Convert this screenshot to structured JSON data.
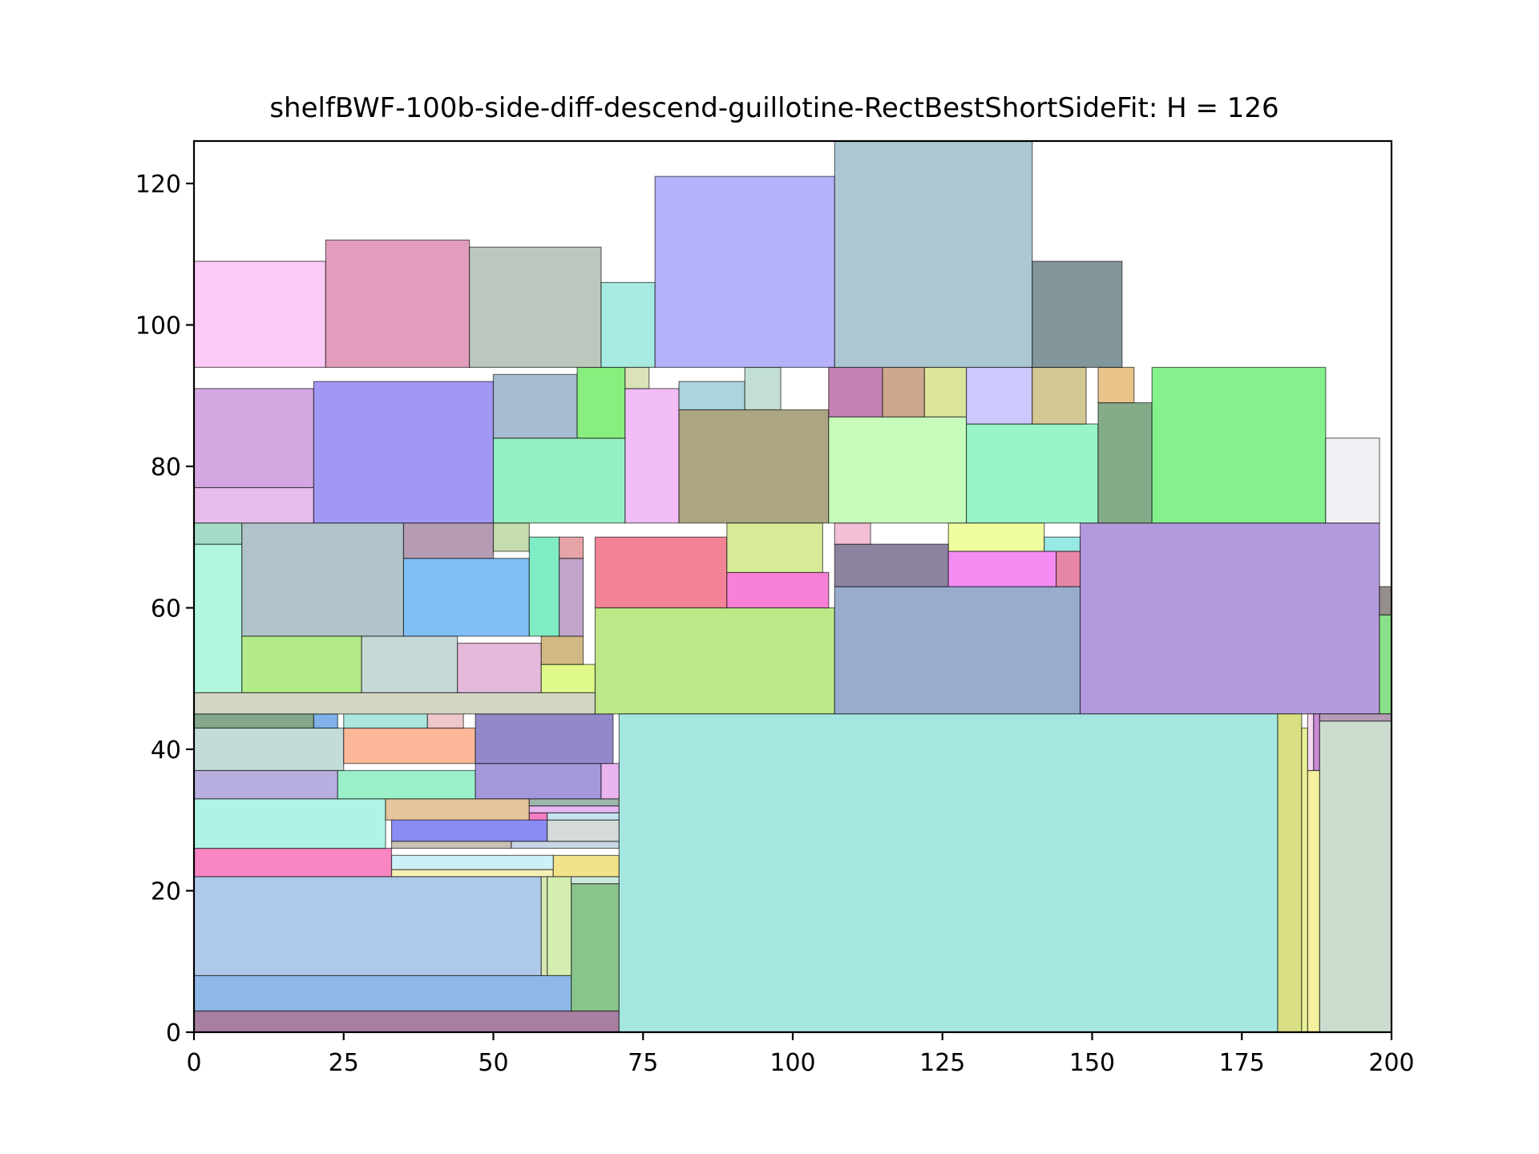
{
  "chart_data": {
    "type": "rectangle-packing",
    "title": "shelfBWF-100b-side-diff-descend-guillotine-RectBestShortSideFit: H = 126",
    "xlim": [
      0,
      200
    ],
    "ylim": [
      0,
      126
    ],
    "x_ticks": [
      "0",
      "25",
      "50",
      "75",
      "100",
      "125",
      "150",
      "175",
      "200"
    ],
    "y_ticks": [
      "0",
      "20",
      "40",
      "60",
      "80",
      "100",
      "120"
    ],
    "x_tick_values": [
      0,
      25,
      50,
      75,
      100,
      125,
      150,
      175,
      200
    ],
    "y_tick_values": [
      0,
      20,
      40,
      60,
      80,
      100,
      120
    ],
    "grid": false,
    "rectangles": [
      {
        "x": 0,
        "y": 0,
        "w": 71,
        "h": 3,
        "color": "#a77fa0"
      },
      {
        "x": 0,
        "y": 3,
        "w": 63,
        "h": 5,
        "color": "#8fb8e8"
      },
      {
        "x": 63,
        "y": 3,
        "w": 8,
        "h": 18,
        "color": "#89c48a"
      },
      {
        "x": 0,
        "y": 8,
        "w": 58,
        "h": 14,
        "color": "#afc9ea"
      },
      {
        "x": 58,
        "y": 8,
        "w": 1,
        "h": 14,
        "color": "#d6e7b4"
      },
      {
        "x": 59,
        "y": 8,
        "w": 4,
        "h": 14,
        "color": "#d3eeb0"
      },
      {
        "x": 63,
        "y": 21,
        "w": 8,
        "h": 1,
        "color": "#cde8de"
      },
      {
        "x": 0,
        "y": 22,
        "w": 33,
        "h": 4,
        "color": "#f886c2"
      },
      {
        "x": 33,
        "y": 22,
        "w": 27,
        "h": 1,
        "color": "#f6f0b6"
      },
      {
        "x": 60,
        "y": 22,
        "w": 11,
        "h": 3,
        "color": "#f2e28a"
      },
      {
        "x": 33,
        "y": 23,
        "w": 27,
        "h": 2,
        "color": "#cdf0f6"
      },
      {
        "x": 33,
        "y": 26,
        "w": 20,
        "h": 1,
        "color": "#c9c1b6"
      },
      {
        "x": 53,
        "y": 26,
        "w": 18,
        "h": 1,
        "color": "#c7d6e4"
      },
      {
        "x": 33,
        "y": 27,
        "w": 26,
        "h": 4,
        "color": "#8a8cf5"
      },
      {
        "x": 59,
        "y": 27,
        "w": 12,
        "h": 3,
        "color": "#d5dadb"
      },
      {
        "x": 0,
        "y": 26,
        "w": 32,
        "h": 7,
        "color": "#aef4e6"
      },
      {
        "x": 32,
        "y": 30,
        "w": 24,
        "h": 3,
        "color": "#e6c59c"
      },
      {
        "x": 56,
        "y": 31,
        "w": 15,
        "h": 1,
        "color": "#e8b6f0"
      },
      {
        "x": 56,
        "y": 30,
        "w": 3,
        "h": 1,
        "color": "#f47cc4"
      },
      {
        "x": 59,
        "y": 30,
        "w": 12,
        "h": 1,
        "color": "#c8e4f0"
      },
      {
        "x": 56,
        "y": 32,
        "w": 15,
        "h": 1,
        "color": "#9eb7ad"
      },
      {
        "x": 0,
        "y": 33,
        "w": 24,
        "h": 4,
        "color": "#b8aee0"
      },
      {
        "x": 24,
        "y": 33,
        "w": 23,
        "h": 4,
        "color": "#9af0c8"
      },
      {
        "x": 47,
        "y": 33,
        "w": 21,
        "h": 5,
        "color": "#a497da"
      },
      {
        "x": 68,
        "y": 33,
        "w": 3,
        "h": 5,
        "color": "#eab4f0"
      },
      {
        "x": 0,
        "y": 37,
        "w": 25,
        "h": 6,
        "color": "#c3dcd8"
      },
      {
        "x": 25,
        "y": 38,
        "w": 22,
        "h": 5,
        "color": "#fbb798"
      },
      {
        "x": 47,
        "y": 38,
        "w": 23,
        "h": 7,
        "color": "#9289ca"
      },
      {
        "x": 0,
        "y": 43,
        "w": 20,
        "h": 2,
        "color": "#84a88a"
      },
      {
        "x": 20,
        "y": 43,
        "w": 4,
        "h": 2,
        "color": "#7eb2e8"
      },
      {
        "x": 25,
        "y": 43,
        "w": 14,
        "h": 3,
        "color": "#a9e7dc"
      },
      {
        "x": 39,
        "y": 43,
        "w": 6,
        "h": 3,
        "color": "#edc7cb"
      },
      {
        "x": 0,
        "y": 45,
        "w": 67,
        "h": 3,
        "color": "#d3d6c3"
      },
      {
        "x": 0,
        "y": 48,
        "w": 8,
        "h": 21,
        "color": "#b2f7dd"
      },
      {
        "x": 8,
        "y": 48,
        "w": 20,
        "h": 8,
        "color": "#b2eb88"
      },
      {
        "x": 28,
        "y": 48,
        "w": 16,
        "h": 8,
        "color": "#c5d9d6"
      },
      {
        "x": 44,
        "y": 48,
        "w": 14,
        "h": 7,
        "color": "#e5b9dc"
      },
      {
        "x": 58,
        "y": 48,
        "w": 9,
        "h": 4,
        "color": "#e0f98b"
      },
      {
        "x": 58,
        "y": 52,
        "w": 7,
        "h": 4,
        "color": "#d2b983"
      },
      {
        "x": 0,
        "y": 69,
        "w": 8,
        "h": 3,
        "color": "#a3dcc6"
      },
      {
        "x": 8,
        "y": 56,
        "w": 27,
        "h": 16,
        "color": "#b0c4c9"
      },
      {
        "x": 35,
        "y": 56,
        "w": 21,
        "h": 11,
        "color": "#80bff4"
      },
      {
        "x": 35,
        "y": 67,
        "w": 15,
        "h": 5,
        "color": "#b59cb3"
      },
      {
        "x": 50,
        "y": 68,
        "w": 6,
        "h": 4,
        "color": "#c5dcae"
      },
      {
        "x": 56,
        "y": 56,
        "w": 5,
        "h": 14,
        "color": "#80ecc4"
      },
      {
        "x": 61,
        "y": 56,
        "w": 4,
        "h": 11,
        "color": "#c2a4cd"
      },
      {
        "x": 61,
        "y": 67,
        "w": 4,
        "h": 3,
        "color": "#e6a4a6"
      },
      {
        "x": 67,
        "y": 45,
        "w": 40,
        "h": 15,
        "color": "#bce887"
      },
      {
        "x": 67,
        "y": 60,
        "w": 22,
        "h": 10,
        "color": "#f28496"
      },
      {
        "x": 89,
        "y": 60,
        "w": 17,
        "h": 5,
        "color": "#f880d6"
      },
      {
        "x": 89,
        "y": 65,
        "w": 16,
        "h": 7,
        "color": "#d7ea98"
      },
      {
        "x": 107,
        "y": 45,
        "w": 41,
        "h": 18,
        "color": "#98acce"
      },
      {
        "x": 107,
        "y": 63,
        "w": 19,
        "h": 6,
        "color": "#8b839f"
      },
      {
        "x": 107,
        "y": 69,
        "w": 6,
        "h": 3,
        "color": "#f2bfd6"
      },
      {
        "x": 126,
        "y": 63,
        "w": 18,
        "h": 5,
        "color": "#f48cf4"
      },
      {
        "x": 144,
        "y": 63,
        "w": 4,
        "h": 5,
        "color": "#e786a6"
      },
      {
        "x": 126,
        "y": 68,
        "w": 16,
        "h": 4,
        "color": "#eefd9e"
      },
      {
        "x": 142,
        "y": 68,
        "w": 6,
        "h": 2,
        "color": "#98e8e4"
      },
      {
        "x": 148,
        "y": 45,
        "w": 50,
        "h": 27,
        "color": "#b39adc"
      },
      {
        "x": 198,
        "y": 45,
        "w": 2,
        "h": 14,
        "color": "#8ae08a"
      },
      {
        "x": 198,
        "y": 59,
        "w": 2,
        "h": 4,
        "color": "#968e8a"
      },
      {
        "x": 71,
        "y": 0,
        "w": 110,
        "h": 45,
        "color": "#a6e6e0"
      },
      {
        "x": 181,
        "y": 0,
        "w": 4,
        "h": 45,
        "color": "#d8df82"
      },
      {
        "x": 185,
        "y": 0,
        "w": 1,
        "h": 43,
        "color": "#eaf096"
      },
      {
        "x": 186,
        "y": 0,
        "w": 2,
        "h": 37,
        "color": "#f4f09e"
      },
      {
        "x": 186,
        "y": 37,
        "w": 1,
        "h": 8,
        "color": "#f7d9f2"
      },
      {
        "x": 187,
        "y": 37,
        "w": 1,
        "h": 8,
        "color": "#c98dd4"
      },
      {
        "x": 188,
        "y": 0,
        "w": 12,
        "h": 44,
        "color": "#cbdbcd"
      },
      {
        "x": 188,
        "y": 44,
        "w": 12,
        "h": 1,
        "color": "#b49cb6"
      },
      {
        "x": 0,
        "y": 72,
        "w": 20,
        "h": 5,
        "color": "#e6bceb"
      },
      {
        "x": 0,
        "y": 77,
        "w": 20,
        "h": 14,
        "color": "#d3a8e2"
      },
      {
        "x": 20,
        "y": 72,
        "w": 30,
        "h": 20,
        "color": "#a198f4"
      },
      {
        "x": 50,
        "y": 72,
        "w": 22,
        "h": 12,
        "color": "#94f0c0"
      },
      {
        "x": 50,
        "y": 84,
        "w": 14,
        "h": 9,
        "color": "#a6bcd2"
      },
      {
        "x": 64,
        "y": 84,
        "w": 8,
        "h": 10,
        "color": "#88ee7d"
      },
      {
        "x": 72,
        "y": 72,
        "w": 9,
        "h": 19,
        "color": "#f2bdf6"
      },
      {
        "x": 72,
        "y": 91,
        "w": 4,
        "h": 3,
        "color": "#dbe2b8"
      },
      {
        "x": 81,
        "y": 72,
        "w": 25,
        "h": 16,
        "color": "#aca583"
      },
      {
        "x": 81,
        "y": 88,
        "w": 11,
        "h": 4,
        "color": "#acd4de"
      },
      {
        "x": 92,
        "y": 88,
        "w": 6,
        "h": 6,
        "color": "#c3dfd4"
      },
      {
        "x": 106,
        "y": 72,
        "w": 23,
        "h": 15,
        "color": "#c7fcbc"
      },
      {
        "x": 106,
        "y": 87,
        "w": 9,
        "h": 7,
        "color": "#c383b4"
      },
      {
        "x": 115,
        "y": 87,
        "w": 7,
        "h": 7,
        "color": "#cea88e"
      },
      {
        "x": 122,
        "y": 87,
        "w": 7,
        "h": 7,
        "color": "#dde49c"
      },
      {
        "x": 129,
        "y": 72,
        "w": 22,
        "h": 14,
        "color": "#99f4c8"
      },
      {
        "x": 129,
        "y": 86,
        "w": 11,
        "h": 8,
        "color": "#cdc8fe"
      },
      {
        "x": 140,
        "y": 86,
        "w": 9,
        "h": 8,
        "color": "#d4c894"
      },
      {
        "x": 151,
        "y": 72,
        "w": 9,
        "h": 17,
        "color": "#85ac88"
      },
      {
        "x": 151,
        "y": 89,
        "w": 6,
        "h": 5,
        "color": "#e8c38a"
      },
      {
        "x": 160,
        "y": 72,
        "w": 29,
        "h": 22,
        "color": "#84f08e"
      },
      {
        "x": 189,
        "y": 72,
        "w": 9,
        "h": 12,
        "color": "#f0f0f4"
      },
      {
        "x": 0,
        "y": 94,
        "w": 22,
        "h": 15,
        "color": "#fbcaf6"
      },
      {
        "x": 22,
        "y": 94,
        "w": 24,
        "h": 18,
        "color": "#e39cbc"
      },
      {
        "x": 46,
        "y": 94,
        "w": 22,
        "h": 17,
        "color": "#bcc8bd"
      },
      {
        "x": 68,
        "y": 94,
        "w": 9,
        "h": 12,
        "color": "#a6eae2"
      },
      {
        "x": 77,
        "y": 94,
        "w": 30,
        "h": 27,
        "color": "#b5b1fa"
      },
      {
        "x": 107,
        "y": 94,
        "w": 33,
        "h": 32,
        "color": "#abc7d2"
      },
      {
        "x": 140,
        "y": 94,
        "w": 15,
        "h": 15,
        "color": "#82969a"
      }
    ]
  }
}
